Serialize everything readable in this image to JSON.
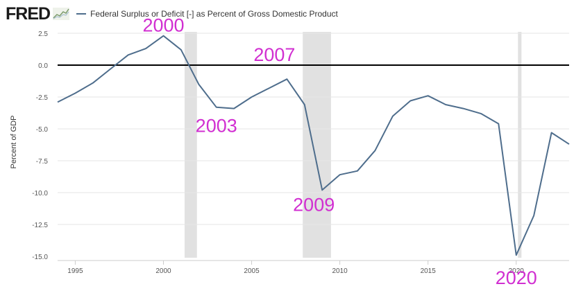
{
  "header": {
    "logo_text": "FRED",
    "logo_icon": "line-chart-icon",
    "legend_label": "Federal Surplus or Deficit [-] as Percent of Gross Domestic Product"
  },
  "chart_data": {
    "type": "line",
    "title": "Federal Surplus or Deficit [-] as Percent of Gross Domestic Product",
    "xlabel": "",
    "ylabel": "Percent of GDP",
    "xlim": [
      1994,
      2023
    ],
    "ylim": [
      -15.0,
      2.5
    ],
    "grid": true,
    "legend": "top-left",
    "x_ticks": [
      1995,
      2000,
      2005,
      2010,
      2015,
      2020
    ],
    "y_ticks": [
      "2.5",
      "0.0",
      "-2.5",
      "-5.0",
      "-7.5",
      "-10.0",
      "-12.5",
      "-15.0"
    ],
    "y_tick_values": [
      2.5,
      0.0,
      -2.5,
      -5.0,
      -7.5,
      -10.0,
      -12.5,
      -15.0
    ],
    "series": [
      {
        "name": "Federal Surplus or Deficit [-] as Percent of Gross Domestic Product",
        "color": "#4e6d8c",
        "x": [
          1994,
          1995,
          1996,
          1997,
          1998,
          1999,
          2000,
          2001,
          2002,
          2003,
          2004,
          2005,
          2006,
          2007,
          2008,
          2009,
          2010,
          2011,
          2012,
          2013,
          2014,
          2015,
          2016,
          2017,
          2018,
          2019,
          2020,
          2021,
          2022,
          2023
        ],
        "values": [
          -2.9,
          -2.2,
          -1.4,
          -0.3,
          0.8,
          1.3,
          2.3,
          1.2,
          -1.5,
          -3.3,
          -3.4,
          -2.5,
          -1.8,
          -1.1,
          -3.1,
          -9.8,
          -8.6,
          -8.3,
          -6.7,
          -4.0,
          -2.8,
          -2.4,
          -3.1,
          -3.4,
          -3.8,
          -4.6,
          -14.9,
          -11.8,
          -5.3,
          -6.2
        ]
      }
    ],
    "reference_line": {
      "value": 0.0,
      "color": "#000000"
    },
    "recessions": [
      {
        "start": 2001.2,
        "end": 2001.9
      },
      {
        "start": 2007.9,
        "end": 2009.5
      },
      {
        "start": 2020.1,
        "end": 2020.3
      }
    ],
    "annotations": [
      {
        "text": "2000",
        "x": 2000,
        "y": 2.3,
        "position": "above"
      },
      {
        "text": "2003",
        "x": 2003,
        "y": -3.3,
        "position": "below"
      },
      {
        "text": "2007",
        "x": 2007,
        "y": -1.1,
        "position": "above"
      },
      {
        "text": "2009",
        "x": 2009,
        "y": -9.8,
        "position": "below"
      },
      {
        "text": "2020",
        "x": 2020,
        "y": -14.9,
        "position": "below"
      }
    ],
    "annotation_color": "#d12fd1",
    "recession_color": "#e1e1e1",
    "grid_color": "#e6e6e6"
  }
}
